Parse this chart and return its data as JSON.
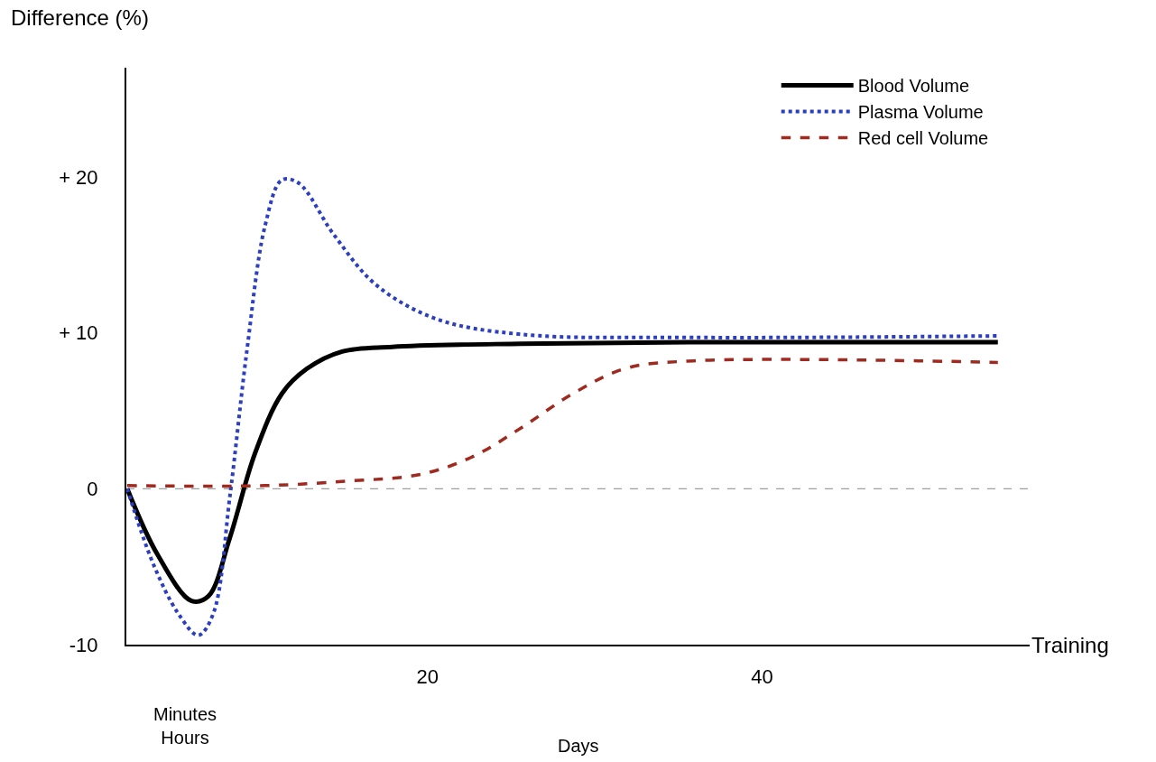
{
  "chart_data": {
    "type": "line",
    "xlabel": "Training",
    "ylabel": "Difference (%)",
    "xlim": [
      2,
      56
    ],
    "xticks": [
      20,
      40
    ],
    "ylim": [
      -10,
      27
    ],
    "yticks": [
      {
        "value": 20,
        "label": "+ 20"
      },
      {
        "value": 10,
        "label": "+ 10"
      },
      0,
      -10
    ],
    "grid": false,
    "legend": "top right",
    "ref_lines": [
      {
        "axis": "y",
        "value": 0,
        "color": "#888888",
        "line_style": "dashed"
      }
    ],
    "annotations": [
      "Minutes\nHours",
      "Days"
    ],
    "series": [
      {
        "name": "Blood Volume",
        "color": "#000000",
        "line_style": "solid",
        "x": [
          2.05,
          3.85,
          5.9,
          6.9,
          8.2,
          9.7,
          11.3,
          12.8,
          14.9,
          17.9,
          25.6,
          35.9,
          54.1
        ],
        "values": [
          0,
          -4.2,
          -7.2,
          -6.9,
          -3.1,
          2.3,
          6.1,
          7.7,
          8.8,
          9.1,
          9.3,
          9.4,
          9.4
        ]
      },
      {
        "name": "Plasma Volume",
        "color": "#2b3fbf",
        "line_style": "dotted",
        "x": [
          2.05,
          3.6,
          5.1,
          6.3,
          7.2,
          8.2,
          9.2,
          10.3,
          11.3,
          12.3,
          14.4,
          16.9,
          20.5,
          25.6,
          35.9,
          54.1
        ],
        "values": [
          0,
          -4.8,
          -8,
          -9.4,
          -8,
          -0.4,
          8.8,
          16.9,
          19.8,
          19.6,
          16.3,
          13.1,
          10.9,
          9.9,
          9.7,
          9.8
        ]
      },
      {
        "name": "Red cell Volume",
        "color": "#9e2a20",
        "line_style": "dashed",
        "x": [
          2.05,
          10.3,
          15.4,
          19.5,
          22.6,
          25.6,
          28.7,
          31.8,
          35.9,
          54.1
        ],
        "values": [
          0.2,
          0.2,
          0.5,
          0.9,
          2.0,
          3.9,
          6.1,
          7.7,
          8.2,
          8.1
        ]
      }
    ]
  }
}
